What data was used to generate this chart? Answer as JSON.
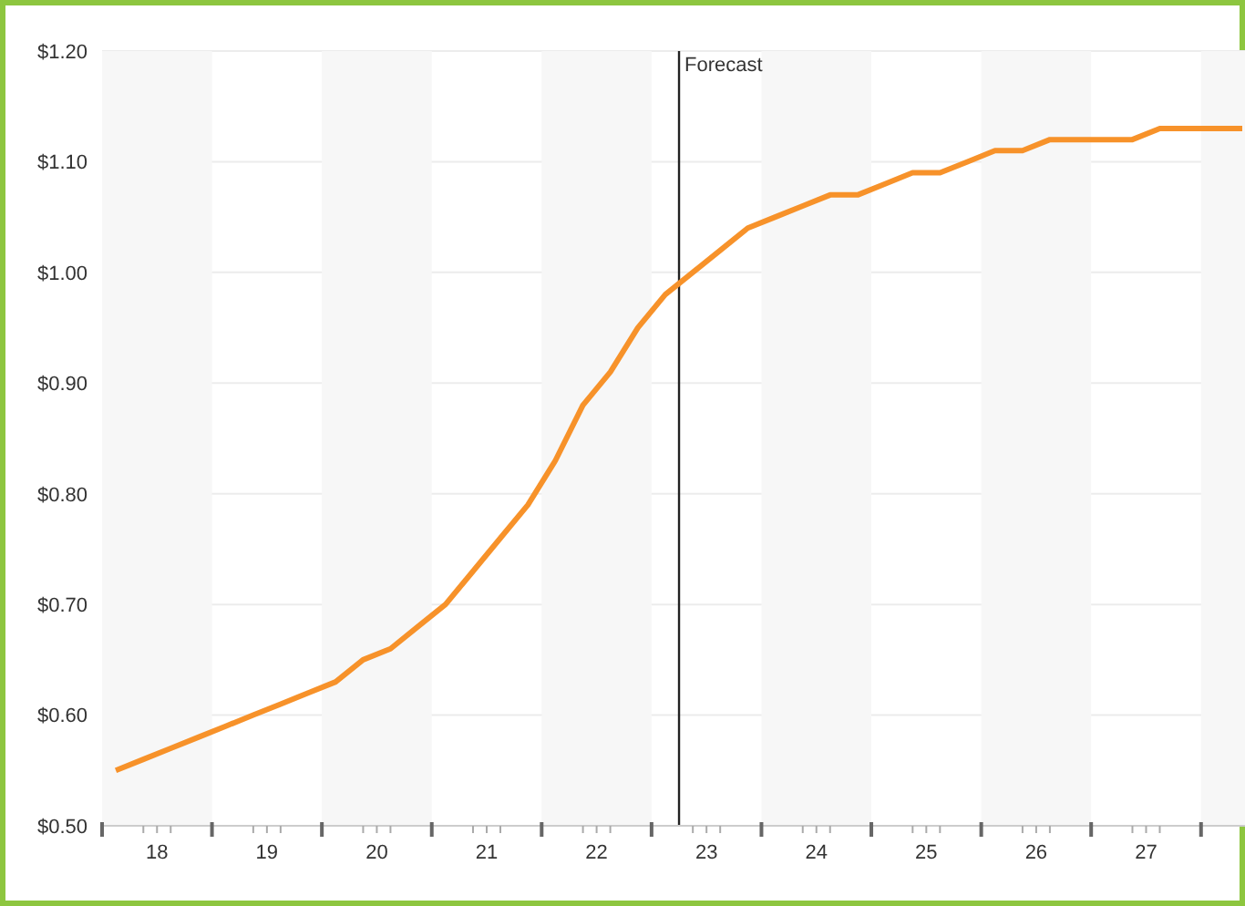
{
  "chart_data": {
    "type": "line",
    "x": [
      17.625,
      17.875,
      18.125,
      18.375,
      18.625,
      18.875,
      19.125,
      19.375,
      19.625,
      19.875,
      20.125,
      20.375,
      20.625,
      20.875,
      21.125,
      21.375,
      21.625,
      21.875,
      22.125,
      22.375,
      22.625,
      22.875,
      23.125,
      23.375,
      23.625,
      23.875,
      24.125,
      24.375,
      24.625,
      24.875,
      25.125,
      25.375,
      25.625,
      25.875,
      26.125,
      26.375,
      26.625,
      26.875,
      27.125,
      27.375,
      27.625,
      27.875
    ],
    "series": [
      {
        "color": "#f7922a",
        "values": [
          0.55,
          0.56,
          0.57,
          0.58,
          0.59,
          0.6,
          0.61,
          0.62,
          0.63,
          0.65,
          0.66,
          0.68,
          0.7,
          0.73,
          0.76,
          0.79,
          0.83,
          0.88,
          0.91,
          0.95,
          0.98,
          1.0,
          1.02,
          1.04,
          1.05,
          1.06,
          1.07,
          1.07,
          1.08,
          1.09,
          1.09,
          1.1,
          1.11,
          1.11,
          1.12,
          1.12,
          1.12,
          1.12,
          1.13,
          1.13,
          1.13,
          1.13
        ]
      }
    ],
    "xlim": [
      17.5,
      27.9
    ],
    "xticks": [
      {
        "value": 17.5,
        "label": null
      },
      {
        "value": 18,
        "label": "18"
      },
      {
        "value": 18.5,
        "label": null
      },
      {
        "value": 19,
        "label": "19"
      },
      {
        "value": 19.5,
        "label": null
      },
      {
        "value": 20,
        "label": "20"
      },
      {
        "value": 20.5,
        "label": null
      },
      {
        "value": 21,
        "label": "21"
      },
      {
        "value": 21.5,
        "label": null
      },
      {
        "value": 22,
        "label": "22"
      },
      {
        "value": 22.5,
        "label": null
      },
      {
        "value": 23,
        "label": "23"
      },
      {
        "value": 23.5,
        "label": null
      },
      {
        "value": 24,
        "label": "24"
      },
      {
        "value": 24.5,
        "label": null
      },
      {
        "value": 25,
        "label": "25"
      },
      {
        "value": 25.5,
        "label": null
      },
      {
        "value": 26,
        "label": "26"
      },
      {
        "value": 26.5,
        "label": null
      },
      {
        "value": 27,
        "label": "27"
      },
      {
        "value": 27.5,
        "label": null
      }
    ],
    "ylim": [
      0.5,
      1.2
    ],
    "yticks": [
      {
        "value": 0.5,
        "label": "$0.50"
      },
      {
        "value": 0.6,
        "label": "$0.60"
      },
      {
        "value": 0.7,
        "label": "$0.70"
      },
      {
        "value": 0.8,
        "label": "$0.80"
      },
      {
        "value": 0.9,
        "label": "$0.90"
      },
      {
        "value": 1.0,
        "label": "$1.00"
      },
      {
        "value": 1.1,
        "label": "$1.10"
      },
      {
        "value": 1.2,
        "label": "$1.20"
      }
    ],
    "grid": "y",
    "marker": "none",
    "line_style": "solid",
    "legend": false,
    "ref_lines": [
      {
        "axis": "x",
        "value": 22.75,
        "label": "Forecast",
        "color": "#222222"
      }
    ],
    "bands": [
      {
        "axis": "x",
        "from": 17.5,
        "to": 18.5,
        "color": "#f7f7f7"
      },
      {
        "axis": "x",
        "from": 19.5,
        "to": 20.5,
        "color": "#f7f7f7"
      },
      {
        "axis": "x",
        "from": 21.5,
        "to": 22.5,
        "color": "#f7f7f7"
      },
      {
        "axis": "x",
        "from": 23.5,
        "to": 24.5,
        "color": "#f7f7f7"
      },
      {
        "axis": "x",
        "from": 25.5,
        "to": 26.5,
        "color": "#f7f7f7"
      },
      {
        "axis": "x",
        "from": 27.5,
        "to": 27.9,
        "color": "#f7f7f7"
      }
    ]
  }
}
